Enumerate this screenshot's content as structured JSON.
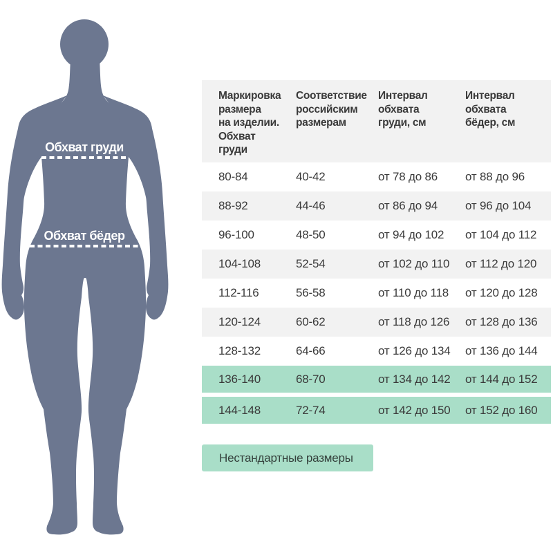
{
  "figure": {
    "chest_label": "Обхват груди",
    "hips_label": "Обхват бёдер"
  },
  "table": {
    "headers": [
      "Маркировка\nразмера\nна изделии.\nОбхват\nгруди",
      "Соответствие\nроссийским\nразмерам",
      "Интервал\nобхвата\nгруди, см",
      "Интервал\nобхвата\nбёдер, см"
    ],
    "rows": [
      {
        "marking": "80-84",
        "russian": "40-42",
        "chest": "от 78 до 86",
        "hips": "от 88 до 96",
        "style": "plain"
      },
      {
        "marking": "88-92",
        "russian": "44-46",
        "chest": "от 86 до 94",
        "hips": "от 96 до 104",
        "style": "stripe"
      },
      {
        "marking": "96-100",
        "russian": "48-50",
        "chest": "от 94 до 102",
        "hips": "от 104 до 112",
        "style": "plain"
      },
      {
        "marking": "104-108",
        "russian": "52-54",
        "chest": "от 102 до 110",
        "hips": "от 112 до 120",
        "style": "stripe"
      },
      {
        "marking": "112-116",
        "russian": "56-58",
        "chest": "от 110 до 118",
        "hips": "от 120 до 128",
        "style": "plain"
      },
      {
        "marking": "120-124",
        "russian": "60-62",
        "chest": "от 118 до 126",
        "hips": "от 128 до 136",
        "style": "stripe"
      },
      {
        "marking": "128-132",
        "russian": "64-66",
        "chest": "от 126 до 134",
        "hips": "от 136 до 144",
        "style": "plain"
      },
      {
        "marking": "136-140",
        "russian": "68-70",
        "chest": "от 134 до 142",
        "hips": "от 144 до 152",
        "style": "highlight hl-first"
      },
      {
        "marking": "144-148",
        "russian": "72-74",
        "chest": "от 142 до 150",
        "hips": "от 152 до 160",
        "style": "highlight hl-last"
      }
    ],
    "button_label": "Нестандартные размеры"
  },
  "colors": {
    "highlight": "#a9dec8",
    "stripe": "#f2f2f2",
    "text": "#3a3a3a",
    "silhouette": "#6c7790"
  }
}
